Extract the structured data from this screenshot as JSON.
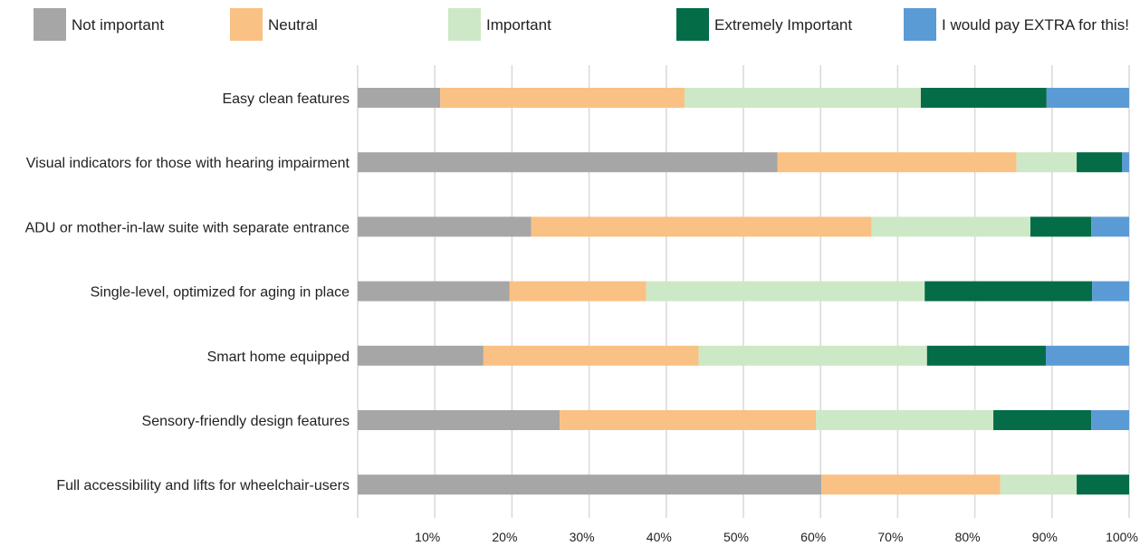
{
  "chart_data": {
    "type": "bar",
    "orientation": "horizontal",
    "stacked": "percent",
    "xlim": [
      0,
      100
    ],
    "grid": true,
    "legend_position": "top",
    "categories": [
      "Easy clean features",
      "Visual indicators for those with hearing impairment",
      "ADU or mother-in-law suite with separate entrance",
      "Single-level, optimized for aging in place",
      "Smart home equipped",
      "Sensory-friendly design features",
      "Full accessibility and lifts for wheelchair-users"
    ],
    "series": [
      {
        "name": "Not important",
        "color": "#a6a6a6",
        "values": [
          10.7,
          54.4,
          22.5,
          19.7,
          16.3,
          26.2,
          60.1
        ]
      },
      {
        "name": "Neutral",
        "color": "#f9c183",
        "values": [
          31.7,
          31.0,
          44.1,
          17.7,
          27.9,
          33.2,
          23.2
        ]
      },
      {
        "name": "Important",
        "color": "#cde8c6",
        "values": [
          30.6,
          7.8,
          20.6,
          36.1,
          29.6,
          23.0,
          9.9
        ]
      },
      {
        "name": "Extremely Important",
        "color": "#046c47",
        "values": [
          16.3,
          5.9,
          7.9,
          21.7,
          15.4,
          12.7,
          6.8
        ]
      },
      {
        "name": "I would pay EXTRA for this!",
        "color": "#5b9bd5",
        "values": [
          10.7,
          0.9,
          4.9,
          4.8,
          10.8,
          4.9,
          0
        ]
      }
    ],
    "tick_labels": [
      "10%",
      "20%",
      "30%",
      "40%",
      "50%",
      "60%",
      "70%",
      "80%",
      "90%",
      "100%"
    ],
    "title": "",
    "xlabel": "",
    "ylabel": ""
  }
}
